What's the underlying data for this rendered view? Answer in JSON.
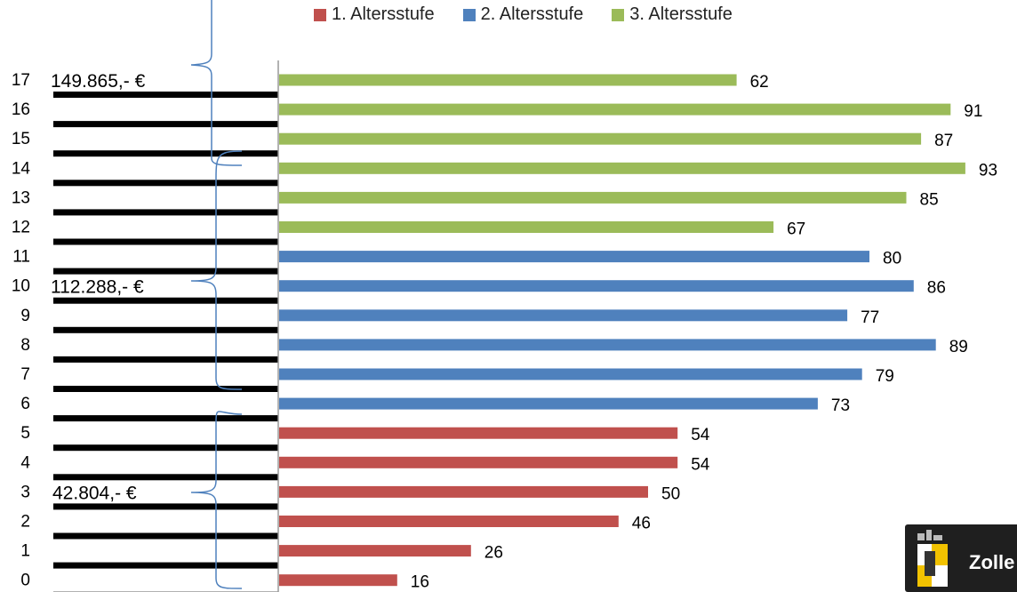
{
  "chart_data": {
    "type": "bar",
    "orientation": "horizontal",
    "categories": [
      "0",
      "1",
      "2",
      "3",
      "4",
      "5",
      "6",
      "7",
      "8",
      "9",
      "10",
      "11",
      "12",
      "13",
      "14",
      "15",
      "16",
      "17"
    ],
    "values": [
      16,
      26,
      46,
      50,
      54,
      54,
      73,
      79,
      89,
      77,
      86,
      80,
      67,
      85,
      93,
      87,
      91,
      62
    ],
    "series_index": [
      0,
      0,
      0,
      0,
      0,
      0,
      1,
      1,
      1,
      1,
      1,
      1,
      2,
      2,
      2,
      2,
      2,
      2
    ],
    "series": [
      {
        "name": "1. Altersstufe",
        "color": "#c0504d"
      },
      {
        "name": "2. Altersstufe",
        "color": "#4f81bd"
      },
      {
        "name": "3. Altersstufe",
        "color": "#9bbb59"
      }
    ],
    "xlim": [
      0,
      100
    ],
    "legend_position": "top",
    "grid": false,
    "annotations": [
      {
        "text": "42.804,- €",
        "category": "3"
      },
      {
        "text": "112.288,- €",
        "category": "10"
      },
      {
        "text": "149.865,- €",
        "category": "17"
      }
    ]
  },
  "logo": {
    "text": "Zolle",
    "icon": "coat-of-arms-icon"
  }
}
